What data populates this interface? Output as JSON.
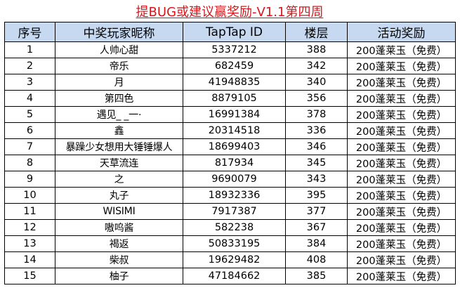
{
  "title": "提BUG或建议赢奖励-V1.1第四周",
  "headers": [
    "序号",
    "中奖玩家昵称",
    "TapTap ID",
    "楼层",
    "活动奖励"
  ],
  "rows": [
    {
      "no": "1",
      "nick": "人帅心甜",
      "id": "5337212",
      "floor": "388",
      "reward": "200蓬莱玉（免费）"
    },
    {
      "no": "2",
      "nick": "帝乐",
      "id": "682459",
      "floor": "342",
      "reward": "200蓬莱玉（免费）"
    },
    {
      "no": "3",
      "nick": "月",
      "id": "41948835",
      "floor": "340",
      "reward": "200蓬莱玉（免费）"
    },
    {
      "no": "4",
      "nick": "第四色",
      "id": "8879105",
      "floor": "356",
      "reward": "200蓬莱玉（免费）"
    },
    {
      "no": "5",
      "nick": "遇见_ _一·",
      "id": "16991384",
      "floor": "378",
      "reward": "200蓬莱玉（免费）"
    },
    {
      "no": "6",
      "nick": "鑫",
      "id": "20314518",
      "floor": "336",
      "reward": "200蓬莱玉（免费）"
    },
    {
      "no": "7",
      "nick": "暴躁少女想用大锤锤爆人",
      "id": "18699403",
      "floor": "346",
      "reward": "200蓬莱玉（免费）"
    },
    {
      "no": "8",
      "nick": "天草流连",
      "id": "817934",
      "floor": "345",
      "reward": "200蓬莱玉（免费）"
    },
    {
      "no": "9",
      "nick": "之",
      "id": "9690079",
      "floor": "343",
      "reward": "200蓬莱玉（免费）"
    },
    {
      "no": "10",
      "nick": "丸子",
      "id": "18932336",
      "floor": "395",
      "reward": "200蓬莱玉（免费）"
    },
    {
      "no": "11",
      "nick": "WISIMI",
      "id": "7917387",
      "floor": "377",
      "reward": "200蓬莱玉（免费）"
    },
    {
      "no": "12",
      "nick": "嗷呜酱",
      "id": "582238",
      "floor": "367",
      "reward": "200蓬莱玉（免费）"
    },
    {
      "no": "13",
      "nick": "褐返",
      "id": "50833195",
      "floor": "384",
      "reward": "200蓬莱玉（免费）"
    },
    {
      "no": "14",
      "nick": "柴叔",
      "id": "19629482",
      "floor": "408",
      "reward": "200蓬莱玉（免费）"
    },
    {
      "no": "15",
      "nick": "柚子",
      "id": "47184662",
      "floor": "385",
      "reward": "200蓬莱玉（免费）"
    }
  ]
}
